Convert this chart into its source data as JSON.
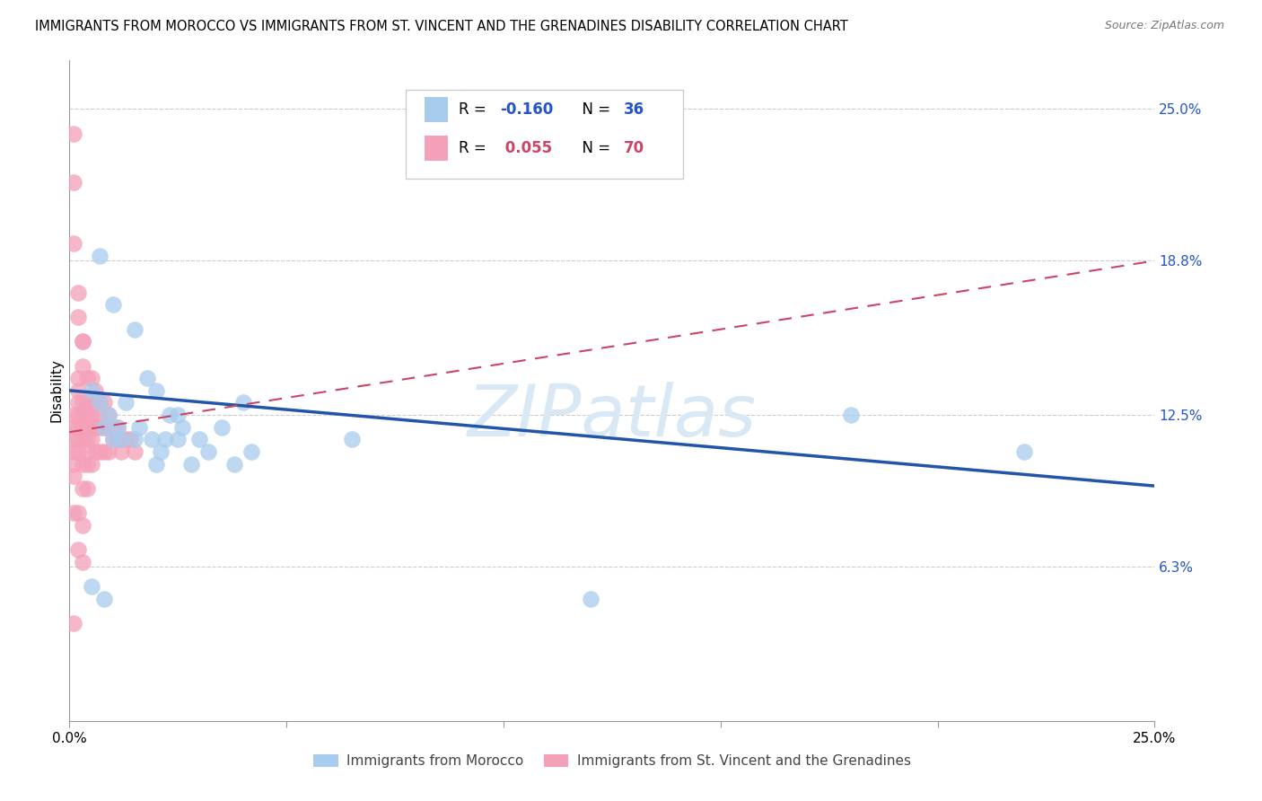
{
  "title": "IMMIGRANTS FROM MOROCCO VS IMMIGRANTS FROM ST. VINCENT AND THE GRENADINES DISABILITY CORRELATION CHART",
  "source": "Source: ZipAtlas.com",
  "ylabel": "Disability",
  "ytick_labels": [
    "25.0%",
    "18.8%",
    "12.5%",
    "6.3%"
  ],
  "ytick_values": [
    0.25,
    0.188,
    0.125,
    0.063
  ],
  "xlim": [
    0.0,
    0.25
  ],
  "ylim": [
    0.0,
    0.27
  ],
  "color_blue": "#A8CCEE",
  "color_pink": "#F4A0B8",
  "line_color_blue": "#2255AA",
  "line_color_pink": "#CC4466",
  "legend_r1_color": "#2255cc",
  "legend_r2_color": "#CC4466",
  "watermark_color": "#D8E8F5",
  "morocco_x": [
    0.005,
    0.007,
    0.008,
    0.009,
    0.01,
    0.011,
    0.012,
    0.013,
    0.015,
    0.016,
    0.018,
    0.019,
    0.02,
    0.021,
    0.022,
    0.023,
    0.025,
    0.026,
    0.028,
    0.03,
    0.032,
    0.035,
    0.038,
    0.04,
    0.007,
    0.01,
    0.015,
    0.02,
    0.025,
    0.042,
    0.18,
    0.22,
    0.12,
    0.065,
    0.005,
    0.008
  ],
  "morocco_y": [
    0.135,
    0.13,
    0.12,
    0.125,
    0.115,
    0.12,
    0.115,
    0.13,
    0.115,
    0.12,
    0.14,
    0.115,
    0.105,
    0.11,
    0.115,
    0.125,
    0.115,
    0.12,
    0.105,
    0.115,
    0.11,
    0.12,
    0.105,
    0.13,
    0.19,
    0.17,
    0.16,
    0.135,
    0.125,
    0.11,
    0.125,
    0.11,
    0.05,
    0.115,
    0.055,
    0.05
  ],
  "svg_x": [
    0.001,
    0.001,
    0.001,
    0.001,
    0.001,
    0.001,
    0.001,
    0.001,
    0.001,
    0.001,
    0.002,
    0.002,
    0.002,
    0.002,
    0.002,
    0.002,
    0.002,
    0.002,
    0.002,
    0.002,
    0.003,
    0.003,
    0.003,
    0.003,
    0.003,
    0.003,
    0.003,
    0.003,
    0.003,
    0.003,
    0.004,
    0.004,
    0.004,
    0.004,
    0.004,
    0.004,
    0.004,
    0.004,
    0.005,
    0.005,
    0.005,
    0.005,
    0.005,
    0.005,
    0.006,
    0.006,
    0.006,
    0.006,
    0.007,
    0.007,
    0.007,
    0.007,
    0.008,
    0.008,
    0.008,
    0.009,
    0.009,
    0.009,
    0.01,
    0.01,
    0.011,
    0.011,
    0.012,
    0.012,
    0.013,
    0.014,
    0.015,
    0.001,
    0.002,
    0.003
  ],
  "svg_y": [
    0.24,
    0.22,
    0.195,
    0.125,
    0.12,
    0.115,
    0.11,
    0.105,
    0.1,
    0.04,
    0.175,
    0.165,
    0.14,
    0.135,
    0.13,
    0.125,
    0.12,
    0.115,
    0.11,
    0.07,
    0.155,
    0.155,
    0.145,
    0.13,
    0.125,
    0.12,
    0.115,
    0.105,
    0.095,
    0.065,
    0.14,
    0.13,
    0.125,
    0.12,
    0.115,
    0.11,
    0.105,
    0.095,
    0.14,
    0.13,
    0.125,
    0.12,
    0.115,
    0.105,
    0.135,
    0.13,
    0.12,
    0.11,
    0.13,
    0.125,
    0.12,
    0.11,
    0.13,
    0.12,
    0.11,
    0.125,
    0.12,
    0.11,
    0.12,
    0.115,
    0.12,
    0.115,
    0.115,
    0.11,
    0.115,
    0.115,
    0.11,
    0.085,
    0.085,
    0.08
  ],
  "blue_trend_x0": 0.0,
  "blue_trend_y0": 0.135,
  "blue_trend_x1": 0.25,
  "blue_trend_y1": 0.096,
  "pink_trend_x0": 0.0,
  "pink_trend_y0": 0.118,
  "pink_trend_x1": 0.25,
  "pink_trend_y1": 0.188
}
